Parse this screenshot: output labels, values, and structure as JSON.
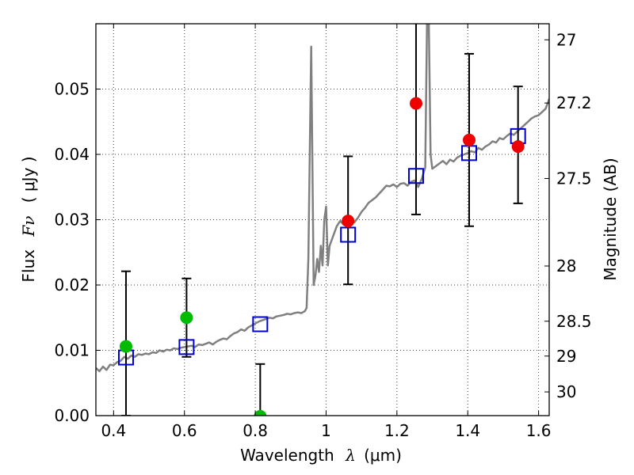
{
  "chart_data": {
    "type": "scatter",
    "xlabel_text": "Wavelength",
    "xlabel_symbol": "λ",
    "xlabel_unit": "(μm)",
    "ylabel_text": "Flux",
    "ylabel_symbol": "Fν",
    "ylabel_unit": "( μJy )",
    "y2label": "Magnitude (AB)",
    "xlim": [
      0.35,
      1.63
    ],
    "ylim": [
      0.0,
      0.06
    ],
    "grid": true,
    "x_ticks": [
      {
        "value": 0.4,
        "label": "0.4"
      },
      {
        "value": 0.6,
        "label": "0.6"
      },
      {
        "value": 0.8,
        "label": "0.8"
      },
      {
        "value": 1.0,
        "label": "1"
      },
      {
        "value": 1.2,
        "label": "1.2"
      },
      {
        "value": 1.4,
        "label": "1.4"
      },
      {
        "value": 1.6,
        "label": "1.6"
      }
    ],
    "y_ticks": [
      {
        "value": 0.0,
        "label": "0.00"
      },
      {
        "value": 0.01,
        "label": "0.01"
      },
      {
        "value": 0.02,
        "label": "0.02"
      },
      {
        "value": 0.03,
        "label": "0.03"
      },
      {
        "value": 0.04,
        "label": "0.04"
      },
      {
        "value": 0.05,
        "label": "0.05"
      }
    ],
    "mag_ticks": [
      {
        "value": 27,
        "label": "27"
      },
      {
        "value": 27.2,
        "label": "27.2"
      },
      {
        "value": 27.5,
        "label": "27.5"
      },
      {
        "value": 28,
        "label": "28"
      },
      {
        "value": 28.5,
        "label": "28.5"
      },
      {
        "value": 29,
        "label": "29"
      },
      {
        "value": 30,
        "label": "30"
      }
    ],
    "colors": {
      "model_line": "#808080",
      "green_points": "#00bb00",
      "red_points": "#ee0000",
      "model_boxes": "#0000cc",
      "error_bars": "#000000"
    },
    "series": [
      {
        "values": [
          [
            0.35,
            0.0073
          ],
          [
            0.36,
            0.0068
          ],
          [
            0.37,
            0.0075
          ],
          [
            0.38,
            0.007
          ],
          [
            0.39,
            0.0078
          ],
          [
            0.4,
            0.0077
          ],
          [
            0.41,
            0.0082
          ],
          [
            0.42,
            0.0084
          ],
          [
            0.43,
            0.009
          ],
          [
            0.44,
            0.0087
          ],
          [
            0.45,
            0.0092
          ],
          [
            0.46,
            0.009
          ],
          [
            0.47,
            0.0094
          ],
          [
            0.48,
            0.0093
          ],
          [
            0.49,
            0.0095
          ],
          [
            0.5,
            0.0094
          ],
          [
            0.51,
            0.0097
          ],
          [
            0.52,
            0.0096
          ],
          [
            0.53,
            0.01
          ],
          [
            0.54,
            0.0098
          ],
          [
            0.55,
            0.0101
          ],
          [
            0.56,
            0.01
          ],
          [
            0.57,
            0.0103
          ],
          [
            0.58,
            0.0102
          ],
          [
            0.59,
            0.0104
          ],
          [
            0.6,
            0.0105
          ],
          [
            0.61,
            0.0106
          ],
          [
            0.62,
            0.0107
          ],
          [
            0.63,
            0.0105
          ],
          [
            0.64,
            0.0109
          ],
          [
            0.65,
            0.0108
          ],
          [
            0.66,
            0.011
          ],
          [
            0.67,
            0.0112
          ],
          [
            0.68,
            0.0109
          ],
          [
            0.69,
            0.0113
          ],
          [
            0.7,
            0.0116
          ],
          [
            0.71,
            0.0118
          ],
          [
            0.72,
            0.0117
          ],
          [
            0.73,
            0.0122
          ],
          [
            0.74,
            0.0126
          ],
          [
            0.75,
            0.0128
          ],
          [
            0.76,
            0.0132
          ],
          [
            0.77,
            0.013
          ],
          [
            0.78,
            0.0135
          ],
          [
            0.79,
            0.0138
          ],
          [
            0.8,
            0.0141
          ],
          [
            0.81,
            0.0144
          ],
          [
            0.82,
            0.0146
          ],
          [
            0.83,
            0.0148
          ],
          [
            0.84,
            0.015
          ],
          [
            0.85,
            0.0149
          ],
          [
            0.86,
            0.0152
          ],
          [
            0.87,
            0.0153
          ],
          [
            0.88,
            0.0154
          ],
          [
            0.89,
            0.0156
          ],
          [
            0.9,
            0.0155
          ],
          [
            0.91,
            0.0157
          ],
          [
            0.92,
            0.0158
          ],
          [
            0.93,
            0.0157
          ],
          [
            0.94,
            0.016
          ],
          [
            0.945,
            0.0165
          ],
          [
            0.95,
            0.024
          ],
          [
            0.955,
            0.045
          ],
          [
            0.958,
            0.0565
          ],
          [
            0.962,
            0.035
          ],
          [
            0.965,
            0.02
          ],
          [
            0.97,
            0.0215
          ],
          [
            0.975,
            0.024
          ],
          [
            0.98,
            0.022
          ],
          [
            0.985,
            0.026
          ],
          [
            0.99,
            0.023
          ],
          [
            0.995,
            0.03
          ],
          [
            1.0,
            0.032
          ],
          [
            1.005,
            0.023
          ],
          [
            1.01,
            0.026
          ],
          [
            1.02,
            0.0275
          ],
          [
            1.03,
            0.029
          ],
          [
            1.04,
            0.0298
          ],
          [
            1.05,
            0.0292
          ],
          [
            1.06,
            0.03
          ],
          [
            1.07,
            0.0305
          ],
          [
            1.08,
            0.0296
          ],
          [
            1.09,
            0.0303
          ],
          [
            1.1,
            0.0312
          ],
          [
            1.11,
            0.0318
          ],
          [
            1.12,
            0.0326
          ],
          [
            1.13,
            0.033
          ],
          [
            1.14,
            0.0334
          ],
          [
            1.15,
            0.034
          ],
          [
            1.16,
            0.0346
          ],
          [
            1.17,
            0.0352
          ],
          [
            1.18,
            0.0351
          ],
          [
            1.19,
            0.0354
          ],
          [
            1.2,
            0.035
          ],
          [
            1.21,
            0.0355
          ],
          [
            1.22,
            0.0356
          ],
          [
            1.23,
            0.0352
          ],
          [
            1.24,
            0.0358
          ],
          [
            1.25,
            0.036
          ],
          [
            1.26,
            0.035
          ],
          [
            1.27,
            0.0362
          ],
          [
            1.28,
            0.038
          ],
          [
            1.285,
            0.06
          ],
          [
            1.29,
            0.06
          ],
          [
            1.295,
            0.04
          ],
          [
            1.3,
            0.0378
          ],
          [
            1.31,
            0.0382
          ],
          [
            1.32,
            0.0386
          ],
          [
            1.33,
            0.039
          ],
          [
            1.34,
            0.0385
          ],
          [
            1.35,
            0.0392
          ],
          [
            1.36,
            0.0389
          ],
          [
            1.37,
            0.0395
          ],
          [
            1.38,
            0.0398
          ],
          [
            1.39,
            0.04
          ],
          [
            1.4,
            0.0402
          ],
          [
            1.41,
            0.0405
          ],
          [
            1.42,
            0.0403
          ],
          [
            1.43,
            0.041
          ],
          [
            1.44,
            0.0407
          ],
          [
            1.45,
            0.0412
          ],
          [
            1.46,
            0.0415
          ],
          [
            1.47,
            0.042
          ],
          [
            1.48,
            0.0418
          ],
          [
            1.49,
            0.0425
          ],
          [
            1.5,
            0.0423
          ],
          [
            1.51,
            0.0428
          ],
          [
            1.52,
            0.0432
          ],
          [
            1.53,
            0.043
          ],
          [
            1.54,
            0.0435
          ],
          [
            1.55,
            0.044
          ],
          [
            1.56,
            0.0445
          ],
          [
            1.57,
            0.045
          ],
          [
            1.58,
            0.0455
          ],
          [
            1.59,
            0.0458
          ],
          [
            1.6,
            0.046
          ],
          [
            1.61,
            0.0465
          ],
          [
            1.62,
            0.047
          ],
          [
            1.63,
            0.0485
          ]
        ]
      },
      {
        "values": [
          {
            "x": 0.435,
            "y": 0.0106,
            "yerr_low": 0.0,
            "yerr_high": 0.0221
          },
          {
            "x": 0.606,
            "y": 0.015,
            "yerr_low": 0.009,
            "yerr_high": 0.021
          },
          {
            "x": 0.814,
            "y": -0.0001,
            "yerr_low": -0.0001,
            "yerr_high": 0.0079
          }
        ]
      },
      {
        "values": [
          {
            "x": 1.062,
            "y": 0.0298,
            "yerr_low": 0.0201,
            "yerr_high": 0.0397
          },
          {
            "x": 1.254,
            "y": 0.0478,
            "yerr_low": 0.0308,
            "yerr_high": 0.061
          },
          {
            "x": 1.404,
            "y": 0.0422,
            "yerr_low": 0.029,
            "yerr_high": 0.0554
          },
          {
            "x": 1.542,
            "y": 0.0412,
            "yerr_low": 0.0325,
            "yerr_high": 0.0504
          }
        ]
      },
      {
        "values": [
          {
            "x": 0.435,
            "y": 0.0089
          },
          {
            "x": 0.606,
            "y": 0.0105
          },
          {
            "x": 0.814,
            "y": 0.014
          },
          {
            "x": 1.062,
            "y": 0.0277
          },
          {
            "x": 1.254,
            "y": 0.0367
          },
          {
            "x": 1.404,
            "y": 0.0402
          },
          {
            "x": 1.542,
            "y": 0.0428
          }
        ]
      }
    ]
  }
}
